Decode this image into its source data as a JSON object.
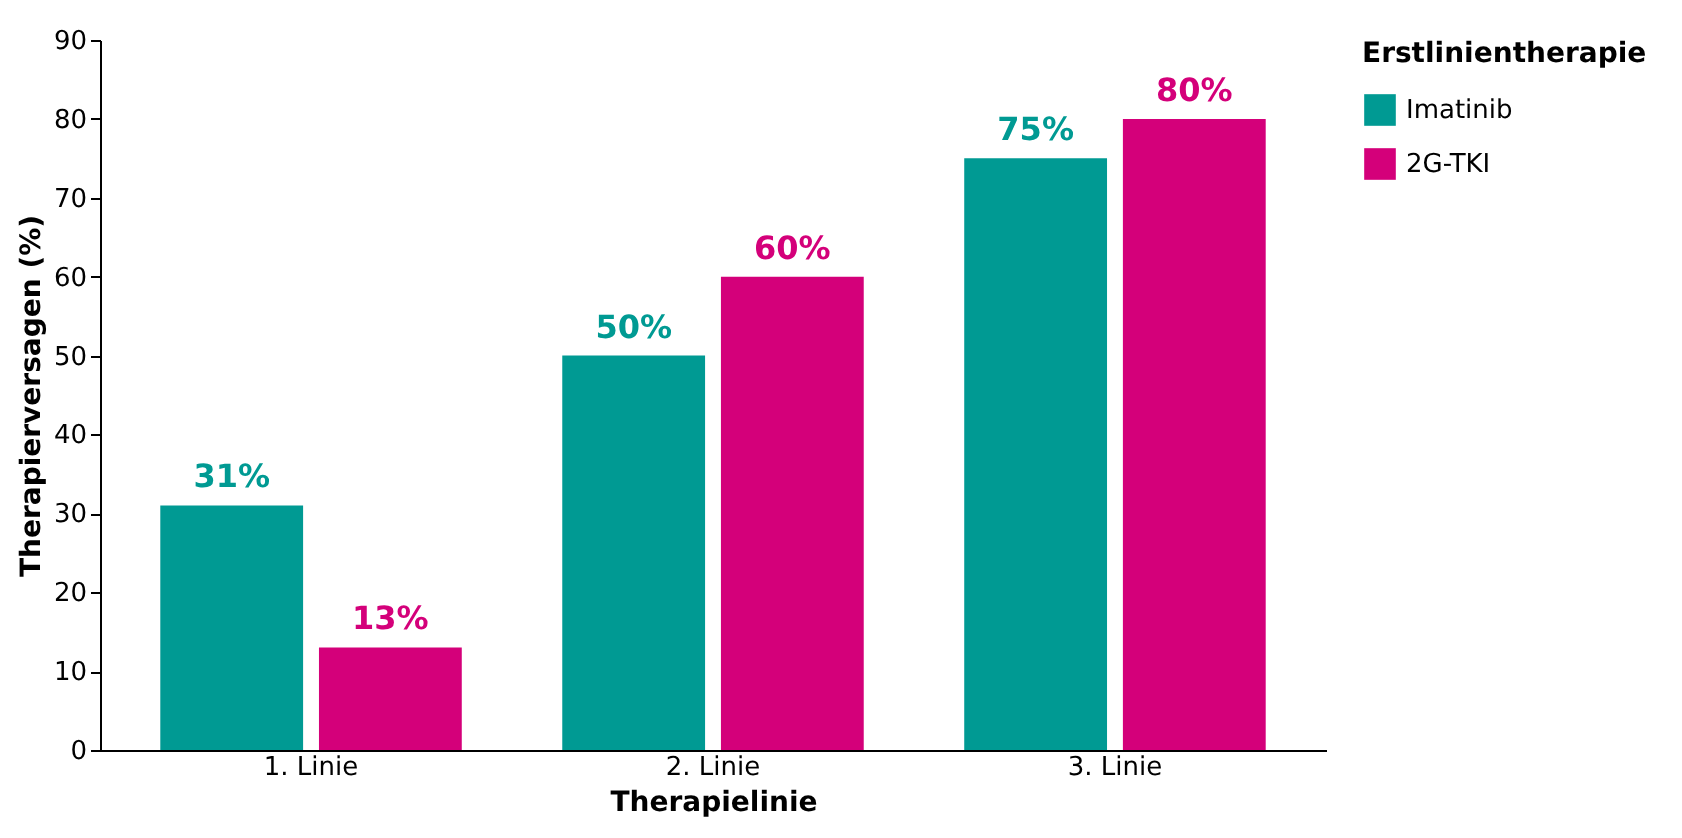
{
  "chart_data": {
    "type": "bar",
    "xlabel": "Therapielinie",
    "ylabel": "Therapierversagen (%)",
    "legend_title": "Erstlinientherapie",
    "categories": [
      "1. Linie",
      "2. Linie",
      "3. Linie"
    ],
    "series": [
      {
        "name": "Imatinib",
        "color": "#009a93",
        "values": [
          31,
          50,
          75
        ],
        "value_labels": [
          "31%",
          "50%",
          "75%"
        ]
      },
      {
        "name": "2G-TKI",
        "color": "#d4007a",
        "values": [
          13,
          60,
          80
        ],
        "value_labels": [
          "13%",
          "60%",
          "80%"
        ]
      }
    ],
    "ylim": [
      0,
      90
    ],
    "yticks": [
      0,
      10,
      20,
      30,
      40,
      50,
      60,
      70,
      80,
      90
    ],
    "grid": false,
    "legend": "top right"
  }
}
